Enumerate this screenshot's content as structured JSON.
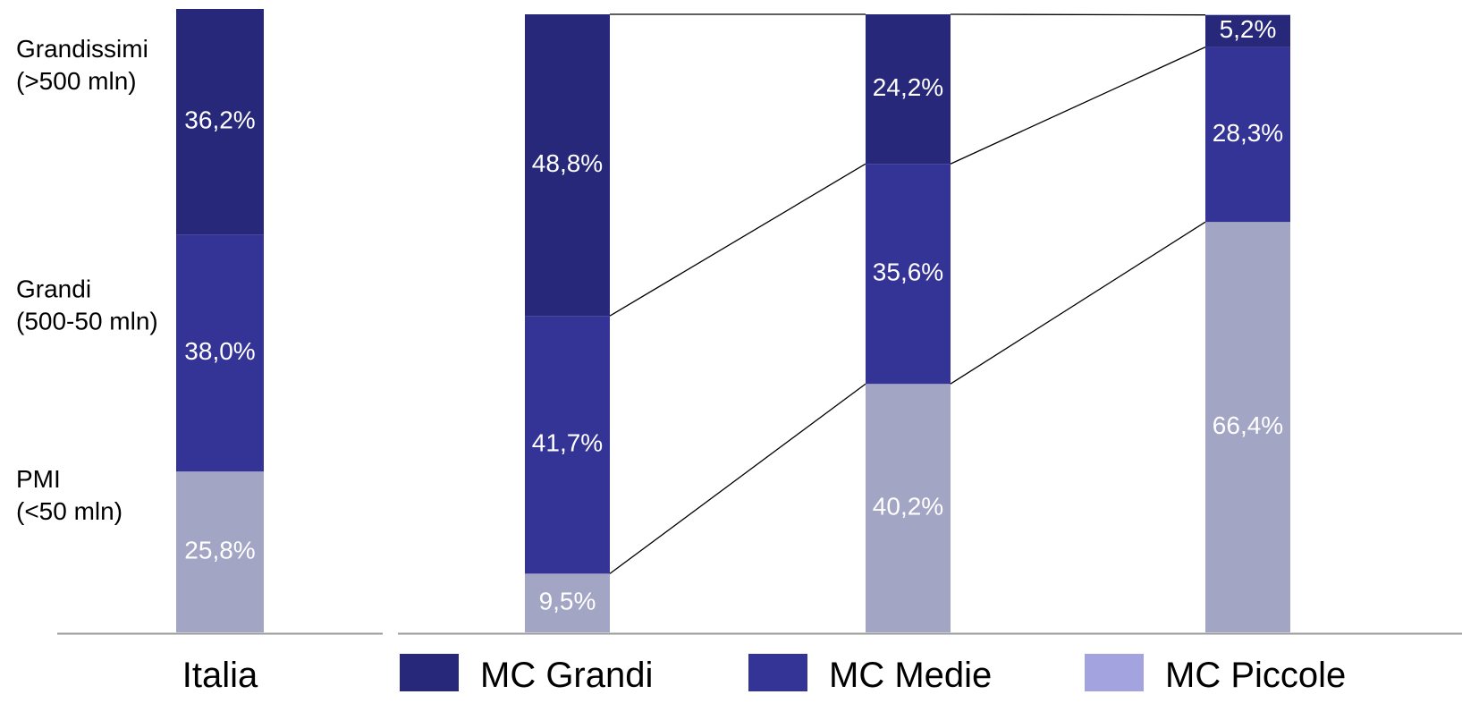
{
  "chart_data": [
    {
      "type": "bar",
      "stacked": true,
      "categories": [
        "Italia"
      ],
      "segments": [
        {
          "label": "PMI\n(<50 mln)",
          "value": 25.8,
          "value_label": "25,8%",
          "color": "#a3a5c4"
        },
        {
          "label": "Grandi\n(500-50 mln)",
          "value": 38.0,
          "value_label": "38,0%",
          "color": "#343396"
        },
        {
          "label": "Grandissimi\n(>500 mln)",
          "value": 36.2,
          "value_label": "36,2%",
          "color": "#28287a"
        }
      ],
      "ylim": [
        0,
        100
      ]
    },
    {
      "type": "bar",
      "stacked": true,
      "categories": [
        "",
        "",
        ""
      ],
      "series": [
        {
          "name": "MC Piccole",
          "values": [
            9.5,
            40.2,
            66.4
          ],
          "value_labels": [
            "9,5%",
            "40,2%",
            "66,4%"
          ],
          "color": "#a3a5c4",
          "legend_color": "#a3a3e0"
        },
        {
          "name": "MC Medie",
          "values": [
            41.7,
            35.6,
            28.3
          ],
          "value_labels": [
            "41,7%",
            "35,6%",
            "28,3%"
          ],
          "color": "#343396",
          "legend_color": "#343396"
        },
        {
          "name": "MC Grandi",
          "values": [
            48.8,
            24.2,
            5.2
          ],
          "value_labels": [
            "48,8%",
            "24,2%",
            "5,2%"
          ],
          "color": "#28287a",
          "legend_color": "#28287a"
        }
      ],
      "connector_lines": true,
      "legend_position": "bottom",
      "ylim": [
        0,
        100
      ]
    }
  ]
}
